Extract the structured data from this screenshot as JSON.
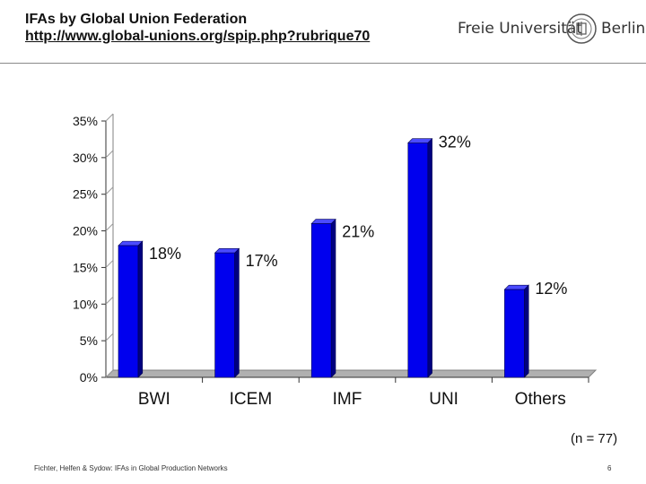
{
  "header": {
    "title": "IFAs by Global Union Federation",
    "url": "http://www.global-unions.org/spip.php?rubrique70"
  },
  "logo": {
    "left_text": "Freie Universität",
    "right_text": "Berlin",
    "seal": "university-seal-icon"
  },
  "chart_data": {
    "type": "bar",
    "categories": [
      "BWI",
      "ICEM",
      "IMF",
      "UNI",
      "Others"
    ],
    "values": [
      18,
      17,
      21,
      32,
      12
    ],
    "data_labels": [
      "18%",
      "17%",
      "21%",
      "32%",
      "12%"
    ],
    "ylim": [
      0,
      35
    ],
    "yticks": [
      "0%",
      "5%",
      "10%",
      "15%",
      "20%",
      "25%",
      "30%",
      "35%"
    ],
    "title": "",
    "xlabel": "",
    "ylabel": "",
    "grid": false,
    "style": "3d",
    "bar_color": "#0000ee",
    "bar_side_color": "#000080",
    "bar_top_color": "#4b4bff"
  },
  "note": "(n = 77)",
  "footer": {
    "text": "Fichter, Helfen & Sydow: IFAs in Global Production Networks",
    "page": "6"
  }
}
